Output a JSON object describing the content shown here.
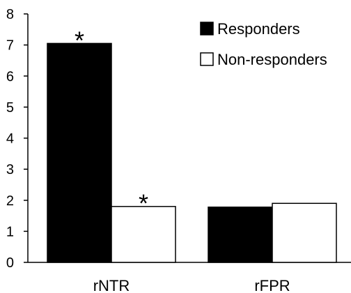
{
  "chart_data": {
    "type": "bar",
    "categories": [
      "rNTR",
      "rFPR"
    ],
    "series": [
      {
        "name": "Responders",
        "values": [
          7.05,
          1.78
        ],
        "color": "#000000"
      },
      {
        "name": "Non-responders",
        "values": [
          1.8,
          1.9
        ],
        "color": "#ffffff"
      }
    ],
    "ylim": [
      0,
      8
    ],
    "yticks": [
      "0",
      "1",
      "2",
      "3",
      "4",
      "5",
      "6",
      "7",
      "8"
    ],
    "annotations": [
      {
        "text": "*",
        "category": "rNTR",
        "series": "Responders"
      },
      {
        "text": "*",
        "category": "rNTR",
        "series": "Non-responders"
      }
    ],
    "legend_position": "top-right",
    "grid": false
  }
}
